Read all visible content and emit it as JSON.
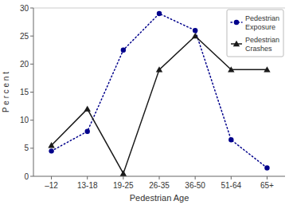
{
  "chart_data": {
    "type": "line",
    "categories": [
      "‒12",
      "13-18",
      "19-25",
      "26-35",
      "36-50",
      "51-64",
      "65+"
    ],
    "series": [
      {
        "name": "Pedestrian\nExposure",
        "color": "#00008B",
        "marker": "circle",
        "line_style": "dotted",
        "values": [
          4.5,
          8.0,
          22.5,
          29.0,
          26.0,
          6.5,
          1.5
        ]
      },
      {
        "name": "Pedestrian\nCrashes",
        "color": "#1a1a1a",
        "marker": "triangle",
        "line_style": "solid",
        "values": [
          5.5,
          12.0,
          0.5,
          19.0,
          25.0,
          19.0,
          19.0
        ]
      }
    ],
    "x_label": "Pedestrian Age",
    "y_label": "P e r c e n t",
    "ylim": [
      0,
      30
    ],
    "yticks": [
      0,
      5,
      10,
      15,
      20,
      25,
      30
    ],
    "grid": false,
    "legend": "upper right"
  }
}
